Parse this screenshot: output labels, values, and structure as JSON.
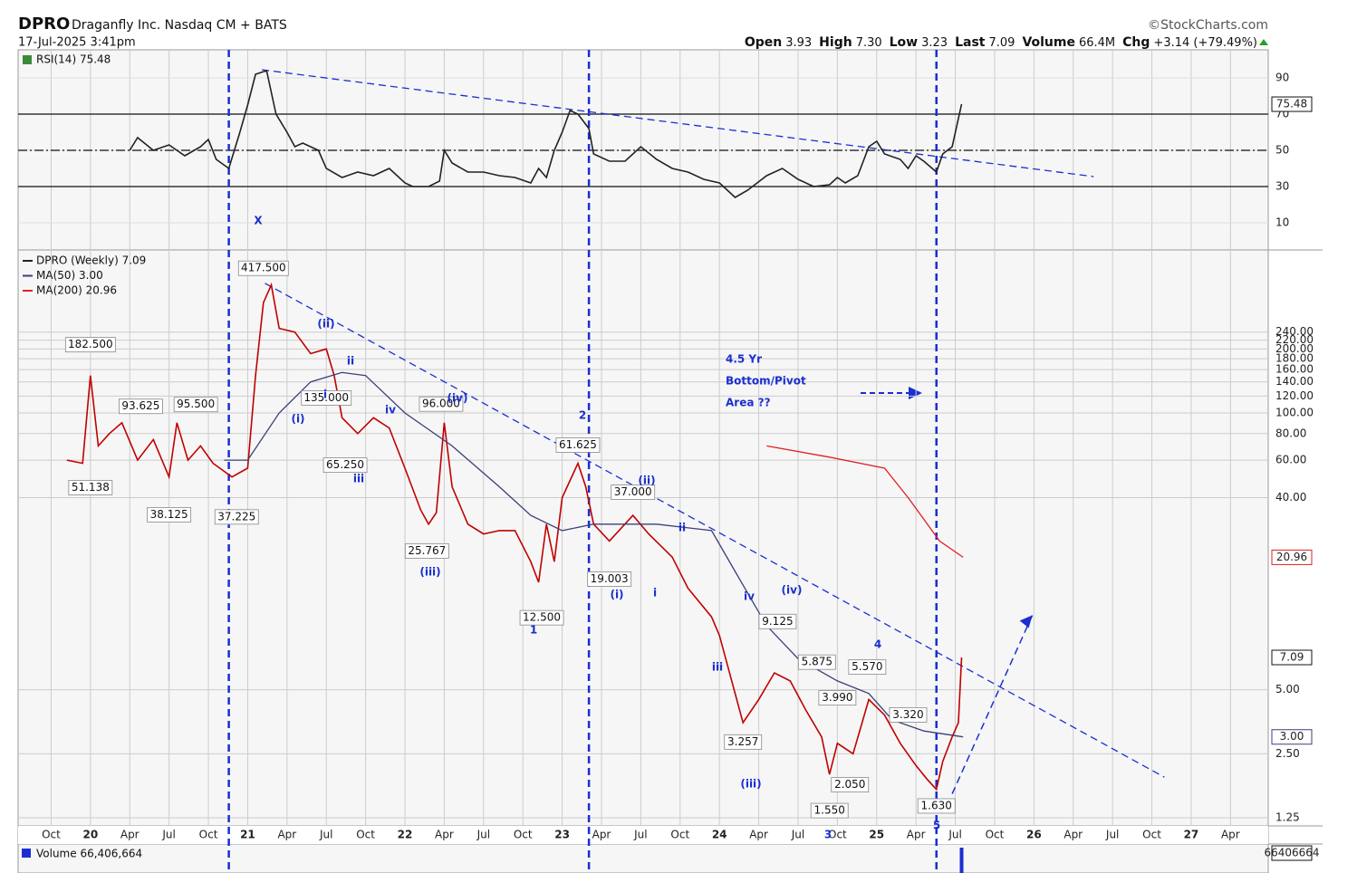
{
  "header": {
    "symbol": "DPRO",
    "name": "Draganfly Inc. Nasdaq CM + BATS",
    "date": "17-Jul-2025 3:41pm",
    "source": "©StockCharts.com",
    "quote": [
      {
        "label": "Open",
        "value": "3.93"
      },
      {
        "label": "High",
        "value": "7.30"
      },
      {
        "label": "Low",
        "value": "3.23"
      },
      {
        "label": "Last",
        "value": "7.09"
      },
      {
        "label": "Volume",
        "value": "66.4M"
      },
      {
        "label": "Chg",
        "value": "+3.14 (+79.49%)"
      }
    ]
  },
  "chart_data": [
    {
      "type": "line",
      "ylim": [
        -5,
        105
      ],
      "yticks": [
        10,
        30,
        50,
        70,
        90
      ],
      "reference_lines": [
        30,
        50,
        70
      ],
      "series": [
        {
          "name": "RSI(14) 75.48",
          "color": "#222222",
          "tag": "75.48",
          "x": [
            2020.25,
            2020.3,
            2020.4,
            2020.5,
            2020.6,
            2020.7,
            2020.75,
            2020.8,
            2020.88,
            2020.95,
            2021.0,
            2021.05,
            2021.12,
            2021.18,
            2021.25,
            2021.3,
            2021.35,
            2021.45,
            2021.5,
            2021.6,
            2021.7,
            2021.8,
            2021.9,
            2022.0,
            2022.05,
            2022.15,
            2022.22,
            2022.25,
            2022.3,
            2022.4,
            2022.5,
            2022.6,
            2022.7,
            2022.8,
            2022.85,
            2022.9,
            2022.95,
            2023.0,
            2023.05,
            2023.1,
            2023.17,
            2023.2,
            2023.3,
            2023.4,
            2023.5,
            2023.6,
            2023.7,
            2023.8,
            2023.9,
            2024.0,
            2024.05,
            2024.1,
            2024.18,
            2024.3,
            2024.4,
            2024.5,
            2024.6,
            2024.7,
            2024.75,
            2024.8,
            2024.88,
            2024.95,
            2025.0,
            2025.05,
            2025.15,
            2025.2,
            2025.25,
            2025.3,
            2025.38,
            2025.42,
            2025.48,
            2025.54
          ],
          "values": [
            50,
            57,
            50,
            53,
            47,
            52,
            56,
            45,
            40,
            60,
            75,
            92,
            94,
            70,
            60,
            52,
            54,
            50,
            40,
            35,
            38,
            36,
            40,
            32,
            30,
            30,
            33,
            50,
            43,
            38,
            38,
            36,
            35,
            32,
            40,
            35,
            50,
            60,
            72,
            70,
            62,
            48,
            44,
            44,
            52,
            45,
            40,
            38,
            34,
            32,
            28,
            24,
            28,
            36,
            40,
            34,
            30,
            31,
            35,
            32,
            36,
            52,
            55,
            48,
            45,
            40,
            47,
            44,
            38,
            48,
            52,
            75.48
          ]
        }
      ],
      "trendline": {
        "x": [
          2021.09,
          2026.38
        ],
        "values": [
          94.5,
          35.5
        ]
      }
    },
    {
      "type": "line",
      "log_scale": true,
      "xlim": [
        2019.54,
        2027.49
      ],
      "ylim": [
        1.145,
        584
      ],
      "grid": true,
      "xticks": [
        {
          "value": 2019.75,
          "label": "Oct"
        },
        {
          "value": 2020,
          "label": "20"
        },
        {
          "value": 2020.25,
          "label": "Apr"
        },
        {
          "value": 2020.5,
          "label": "Jul"
        },
        {
          "value": 2020.75,
          "label": "Oct"
        },
        {
          "value": 2021,
          "label": "21"
        },
        {
          "value": 2021.25,
          "label": "Apr"
        },
        {
          "value": 2021.5,
          "label": "Jul"
        },
        {
          "value": 2021.75,
          "label": "Oct"
        },
        {
          "value": 2022,
          "label": "22"
        },
        {
          "value": 2022.25,
          "label": "Apr"
        },
        {
          "value": 2022.5,
          "label": "Jul"
        },
        {
          "value": 2022.75,
          "label": "Oct"
        },
        {
          "value": 2023,
          "label": "23"
        },
        {
          "value": 2023.25,
          "label": "Apr"
        },
        {
          "value": 2023.5,
          "label": "Jul"
        },
        {
          "value": 2023.75,
          "label": "Oct"
        },
        {
          "value": 2024,
          "label": "24"
        },
        {
          "value": 2024.25,
          "label": "Apr"
        },
        {
          "value": 2024.5,
          "label": "Jul"
        },
        {
          "value": 2024.75,
          "label": "Oct"
        },
        {
          "value": 2025,
          "label": "25"
        },
        {
          "value": 2025.25,
          "label": "Apr"
        },
        {
          "value": 2025.5,
          "label": "Jul"
        },
        {
          "value": 2025.75,
          "label": "Oct"
        },
        {
          "value": 2026,
          "label": "26"
        },
        {
          "value": 2026.25,
          "label": "Apr"
        },
        {
          "value": 2026.5,
          "label": "Jul"
        },
        {
          "value": 2026.75,
          "label": "Oct"
        },
        {
          "value": 2027,
          "label": "27"
        },
        {
          "value": 2027.25,
          "label": "Apr"
        }
      ],
      "yticks": [
        {
          "value": 1.25,
          "label": "1.25"
        },
        {
          "value": 2.5,
          "label": "2.50"
        },
        {
          "value": 5,
          "label": "5.00"
        },
        {
          "value": 40,
          "label": "40.00"
        },
        {
          "value": 60,
          "label": "60.00"
        },
        {
          "value": 80,
          "label": "80.00"
        },
        {
          "value": 100,
          "label": "100.00"
        },
        {
          "value": 120,
          "label": "120.00"
        },
        {
          "value": 140,
          "label": "140.00"
        },
        {
          "value": 160,
          "label": "160.00"
        },
        {
          "value": 180,
          "label": "180.00"
        },
        {
          "value": 200,
          "label": "200.00"
        },
        {
          "value": 220,
          "label": "220.00"
        },
        {
          "value": 240,
          "label": "240.00"
        }
      ],
      "series": [
        {
          "name": "DPRO (Weekly) 7.09",
          "color": "#c00000",
          "tag": "7.09",
          "x": [
            2019.85,
            2019.95,
            2020.0,
            2020.05,
            2020.12,
            2020.2,
            2020.3,
            2020.4,
            2020.5,
            2020.55,
            2020.62,
            2020.7,
            2020.78,
            2020.9,
            2021.0,
            2021.05,
            2021.1,
            2021.15,
            2021.2,
            2021.3,
            2021.4,
            2021.5,
            2021.55,
            2021.6,
            2021.7,
            2021.8,
            2021.9,
            2022.0,
            2022.1,
            2022.15,
            2022.2,
            2022.25,
            2022.3,
            2022.4,
            2022.5,
            2022.6,
            2022.7,
            2022.8,
            2022.85,
            2022.9,
            2022.95,
            2023.0,
            2023.1,
            2023.15,
            2023.2,
            2023.3,
            2023.45,
            2023.55,
            2023.7,
            2023.8,
            2023.95,
            2024.0,
            2024.15,
            2024.25,
            2024.35,
            2024.45,
            2024.55,
            2024.65,
            2024.7,
            2024.75,
            2024.85,
            2024.95,
            2025.05,
            2025.15,
            2025.25,
            2025.32,
            2025.38,
            2025.42,
            2025.48,
            2025.52,
            2025.54
          ],
          "values": [
            60,
            58,
            150,
            70,
            80,
            90,
            60,
            75,
            50,
            90,
            60,
            70,
            58,
            50,
            55,
            150,
            330,
            400,
            250,
            240,
            190,
            200,
            150,
            95,
            80,
            95,
            85,
            55,
            35,
            30,
            34,
            90,
            45,
            30,
            27,
            28,
            28,
            20,
            16,
            30,
            20,
            40,
            58,
            45,
            30,
            25,
            33,
            27,
            21,
            15,
            11,
            9,
            3.5,
            4.5,
            6,
            5.5,
            4,
            3,
            2.0,
            2.8,
            2.5,
            4.5,
            3.8,
            2.8,
            2.2,
            1.9,
            1.7,
            2.3,
            3.0,
            3.5,
            7.09
          ]
        },
        {
          "name": "MA(50) 3.00",
          "color": "#3a3f7a",
          "tag": "3.00",
          "x": [
            2020.85,
            2021.0,
            2021.2,
            2021.4,
            2021.6,
            2021.75,
            2022.0,
            2022.3,
            2022.6,
            2022.8,
            2023.0,
            2023.2,
            2023.4,
            2023.6,
            2023.95,
            2024.1,
            2024.3,
            2024.5,
            2024.75,
            2024.95,
            2025.1,
            2025.3,
            2025.55
          ],
          "values": [
            60,
            60,
            100,
            140,
            155,
            150,
            100,
            70,
            45,
            33,
            28,
            30,
            30,
            30,
            28,
            18,
            10,
            7,
            5.5,
            4.8,
            3.6,
            3.2,
            3.0
          ]
        },
        {
          "name": "MA(200) 20.96",
          "color": "#e02020",
          "tag": "20.96",
          "x": [
            2024.3,
            2024.7,
            2025.05,
            2025.2,
            2025.4,
            2025.55
          ],
          "values": [
            70,
            62,
            55,
            40,
            25,
            20.96
          ]
        }
      ],
      "trendline": {
        "x": [
          2021.11,
          2026.83
        ],
        "values": [
          407,
          1.94
        ]
      },
      "arrow": {
        "x": [
          2025.48,
          2025.99
        ],
        "values": [
          1.62,
          11.2
        ]
      },
      "markers": [
        2020.88,
        2023.17,
        2025.38
      ],
      "point_labels": [
        {
          "x": 2020.0,
          "value": 182.5,
          "label": "182.500"
        },
        {
          "x": 2020.32,
          "value": 93.625,
          "label": "93.625"
        },
        {
          "x": 2020.67,
          "value": 95.5,
          "label": "95.500"
        },
        {
          "x": 2020.0,
          "value": 51.138,
          "label": "51.138"
        },
        {
          "x": 2020.5,
          "value": 38.125,
          "label": "38.125"
        },
        {
          "x": 2020.93,
          "value": 37.225,
          "label": "37.225"
        },
        {
          "x": 2021.1,
          "value": 417.5,
          "label": "417.500"
        },
        {
          "x": 2021.5,
          "value": 135.0,
          "label": "135.000"
        },
        {
          "x": 2022.23,
          "value": 96.0,
          "label": "96.000"
        },
        {
          "x": 2021.62,
          "value": 65.25,
          "label": "65.250"
        },
        {
          "x": 2022.14,
          "value": 25.767,
          "label": "25.767"
        },
        {
          "x": 2023.1,
          "value": 61.625,
          "label": "61.625"
        },
        {
          "x": 2023.3,
          "value": 19.003,
          "label": "19.003"
        },
        {
          "x": 2023.45,
          "value": 37.0,
          "label": "37.000"
        },
        {
          "x": 2022.87,
          "value": 12.5,
          "label": "12.500"
        },
        {
          "x": 2024.37,
          "value": 9.125,
          "label": "9.125"
        },
        {
          "x": 2024.62,
          "value": 5.875,
          "label": "5.875"
        },
        {
          "x": 2024.75,
          "value": 3.99,
          "label": "3.990"
        },
        {
          "x": 2024.94,
          "value": 5.57,
          "label": "5.570"
        },
        {
          "x": 2025.2,
          "value": 3.32,
          "label": "3.320"
        },
        {
          "x": 2024.15,
          "value": 3.257,
          "label": "3.257"
        },
        {
          "x": 2024.83,
          "value": 2.05,
          "label": "2.050"
        },
        {
          "x": 2024.7,
          "value": 1.55,
          "label": "1.550"
        },
        {
          "x": 2025.38,
          "value": 1.63,
          "label": "1.630"
        }
      ],
      "wave_labels": [
        "X",
        "(ii)",
        "ii",
        "(i)",
        "i",
        "iv",
        "iii",
        "(iv)",
        "(iii)",
        "1",
        "2",
        "(ii)",
        "(i)",
        "i",
        "ii",
        "iv",
        "(iv)",
        "iii",
        "(iii)",
        "4",
        "3",
        "5"
      ],
      "annotations": [
        "4.5 Yr",
        "Bottom/Pivot",
        "Area ??"
      ]
    },
    {
      "type": "bar",
      "ylim": [
        0,
        70000000
      ],
      "series": [
        {
          "name": "Volume 66,406,664",
          "color": "#1a2fd0",
          "tag": "66406664",
          "x": [
            2025.54
          ],
          "values": [
            66406664
          ]
        }
      ]
    }
  ]
}
